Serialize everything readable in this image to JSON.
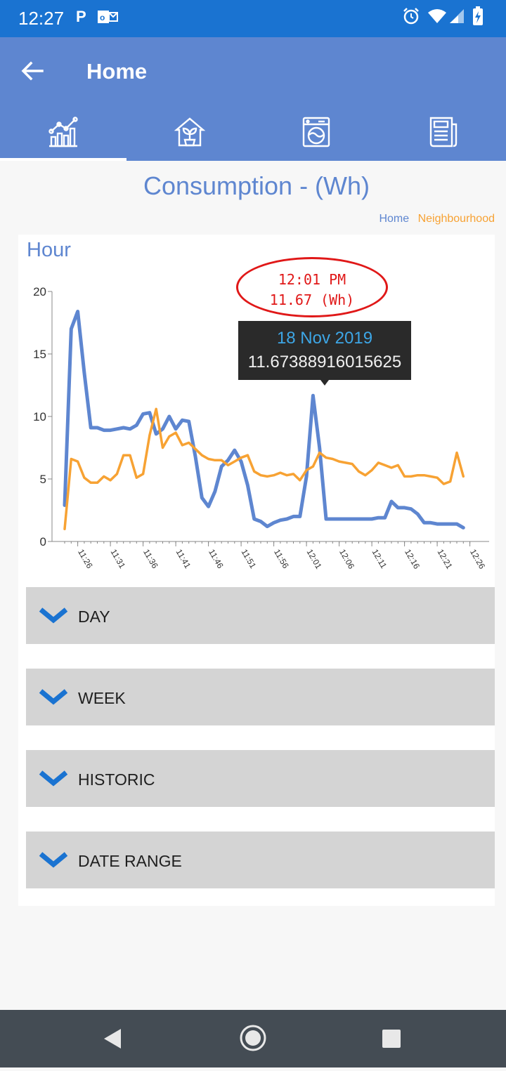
{
  "status_bar": {
    "time": "12:27",
    "left_icons": [
      "parking-icon",
      "outlook-icon"
    ],
    "right_icons": [
      "alarm-icon",
      "wifi-icon",
      "signal-icon",
      "battery-charging-icon"
    ]
  },
  "app_bar": {
    "back_icon": "arrow-left-icon",
    "title": "Home",
    "tabs": [
      {
        "icon": "chart-growth-icon",
        "selected": true
      },
      {
        "icon": "home-plant-icon",
        "selected": false
      },
      {
        "icon": "washing-machine-icon",
        "selected": false
      },
      {
        "icon": "newspaper-icon",
        "selected": false
      }
    ]
  },
  "page": {
    "title": "Consumption - (Wh)",
    "legend": [
      {
        "label": "Home",
        "color": "#5e86d0"
      },
      {
        "label": "Neighbourhood",
        "color": "#f7a233"
      }
    ]
  },
  "chart_card": {
    "heading": "Hour",
    "annotation": {
      "time": "12:01 PM",
      "value": "11.67 (Wh)"
    },
    "tooltip": {
      "date": "18 Nov 2019",
      "value": "11.67388916015625"
    }
  },
  "chart_data": {
    "type": "line",
    "title": "Hour",
    "ylim": [
      0,
      20
    ],
    "yticks": [
      "0",
      "5",
      "10",
      "15",
      "20"
    ],
    "xticks": [
      "11:26",
      "11:31",
      "11:36",
      "11:41",
      "11:46",
      "11:51",
      "11:56",
      "12:01",
      "12:06",
      "12:11",
      "12:16",
      "12:21",
      "12:26"
    ],
    "x_start_minute": 24,
    "series": [
      {
        "name": "Home",
        "color": "#5e86d0",
        "values": [
          2.9,
          17.0,
          18.4,
          13.5,
          9.1,
          9.1,
          8.9,
          8.9,
          9.0,
          9.1,
          9.0,
          9.3,
          10.2,
          10.3,
          8.6,
          9.0,
          10.0,
          9.0,
          9.7,
          9.6,
          6.8,
          3.5,
          2.8,
          4.0,
          6.0,
          6.5,
          7.3,
          6.4,
          4.5,
          1.8,
          1.6,
          1.2,
          1.5,
          1.7,
          1.8,
          2.0,
          2.0,
          5.2,
          11.67,
          7.5,
          1.8,
          1.8,
          1.8,
          1.8,
          1.8,
          1.8,
          1.8,
          1.8,
          1.9,
          1.9,
          3.2,
          2.7,
          2.7,
          2.6,
          2.2,
          1.5,
          1.5,
          1.4,
          1.4,
          1.4,
          1.4,
          1.1
        ]
      },
      {
        "name": "Neighbourhood",
        "color": "#f7a233",
        "values": [
          1.0,
          6.6,
          6.4,
          5.1,
          4.7,
          4.7,
          5.2,
          4.9,
          5.4,
          6.9,
          6.9,
          5.1,
          5.4,
          8.5,
          10.6,
          7.5,
          8.4,
          8.7,
          7.7,
          7.9,
          7.4,
          6.9,
          6.6,
          6.5,
          6.5,
          6.1,
          6.4,
          6.7,
          6.9,
          5.6,
          5.3,
          5.2,
          5.3,
          5.5,
          5.3,
          5.4,
          4.9,
          5.7,
          6.0,
          7.1,
          6.7,
          6.6,
          6.4,
          6.3,
          6.2,
          5.6,
          5.3,
          5.7,
          6.3,
          6.1,
          5.9,
          6.1,
          5.2,
          5.2,
          5.3,
          5.3,
          5.2,
          5.1,
          4.6,
          4.8,
          7.1,
          5.2
        ]
      }
    ]
  },
  "expanders": [
    {
      "label": "DAY",
      "icon": "chevron-down-icon"
    },
    {
      "label": "WEEK",
      "icon": "chevron-down-icon"
    },
    {
      "label": "HISTORIC",
      "icon": "chevron-down-icon"
    },
    {
      "label": "DATE RANGE",
      "icon": "chevron-down-icon"
    }
  ],
  "nav_bar": {
    "buttons": [
      "back-triangle-icon",
      "home-circle-icon",
      "recents-square-icon"
    ]
  }
}
